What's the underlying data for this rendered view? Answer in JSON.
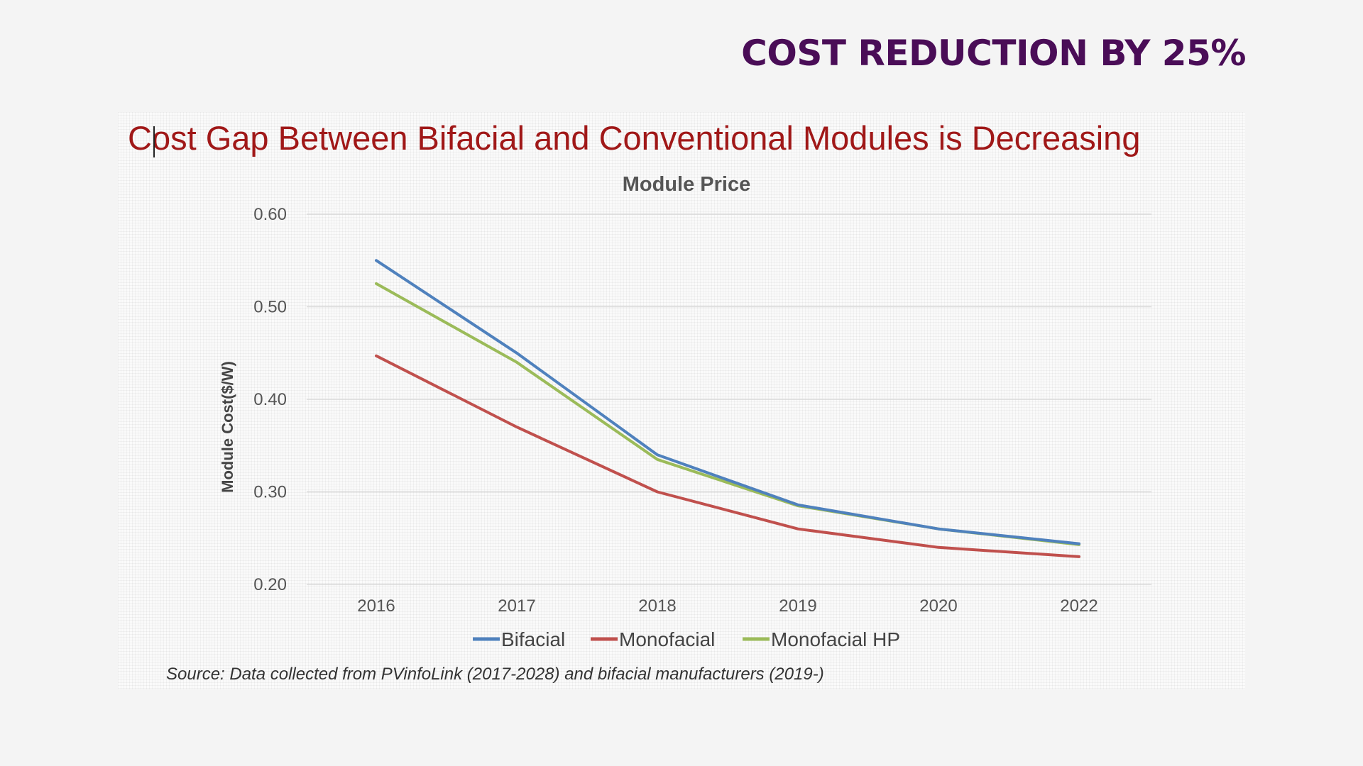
{
  "headline": "COST REDUCTION BY 25%",
  "slide_title": "Cost Gap Between Bifacial and Conventional Modules is Decreasing",
  "source_note": "Source:  Data collected from PVinfoLink (2017-2028) and bifacial manufacturers (2019-)",
  "colors": {
    "headline": "#4a0d57",
    "slide_title": "#a01818",
    "bifacial": "#4f81bd",
    "monofacial": "#c0504d",
    "monofacial_hp": "#9bbb59"
  },
  "chart_data": {
    "type": "line",
    "title": "Module Price",
    "xlabel": "",
    "ylabel": "Module Cost($/W)",
    "categories": [
      "2016",
      "2017",
      "2018",
      "2019",
      "2020",
      "2022"
    ],
    "ylim": [
      0.2,
      0.6
    ],
    "yticks": [
      "0.60",
      "0.50",
      "0.40",
      "0.30",
      "0.20"
    ],
    "grid": true,
    "legend": "bottom",
    "series": [
      {
        "name": "Bifacial",
        "color": "#4f81bd",
        "values": [
          0.55,
          0.45,
          0.34,
          0.286,
          0.26,
          0.244
        ]
      },
      {
        "name": "Monofacial",
        "color": "#c0504d",
        "values": [
          0.447,
          0.37,
          0.3,
          0.26,
          0.24,
          0.23
        ]
      },
      {
        "name": "Monofacial HP",
        "color": "#9bbb59",
        "values": [
          0.525,
          0.44,
          0.335,
          0.285,
          0.26,
          0.243
        ]
      }
    ]
  }
}
